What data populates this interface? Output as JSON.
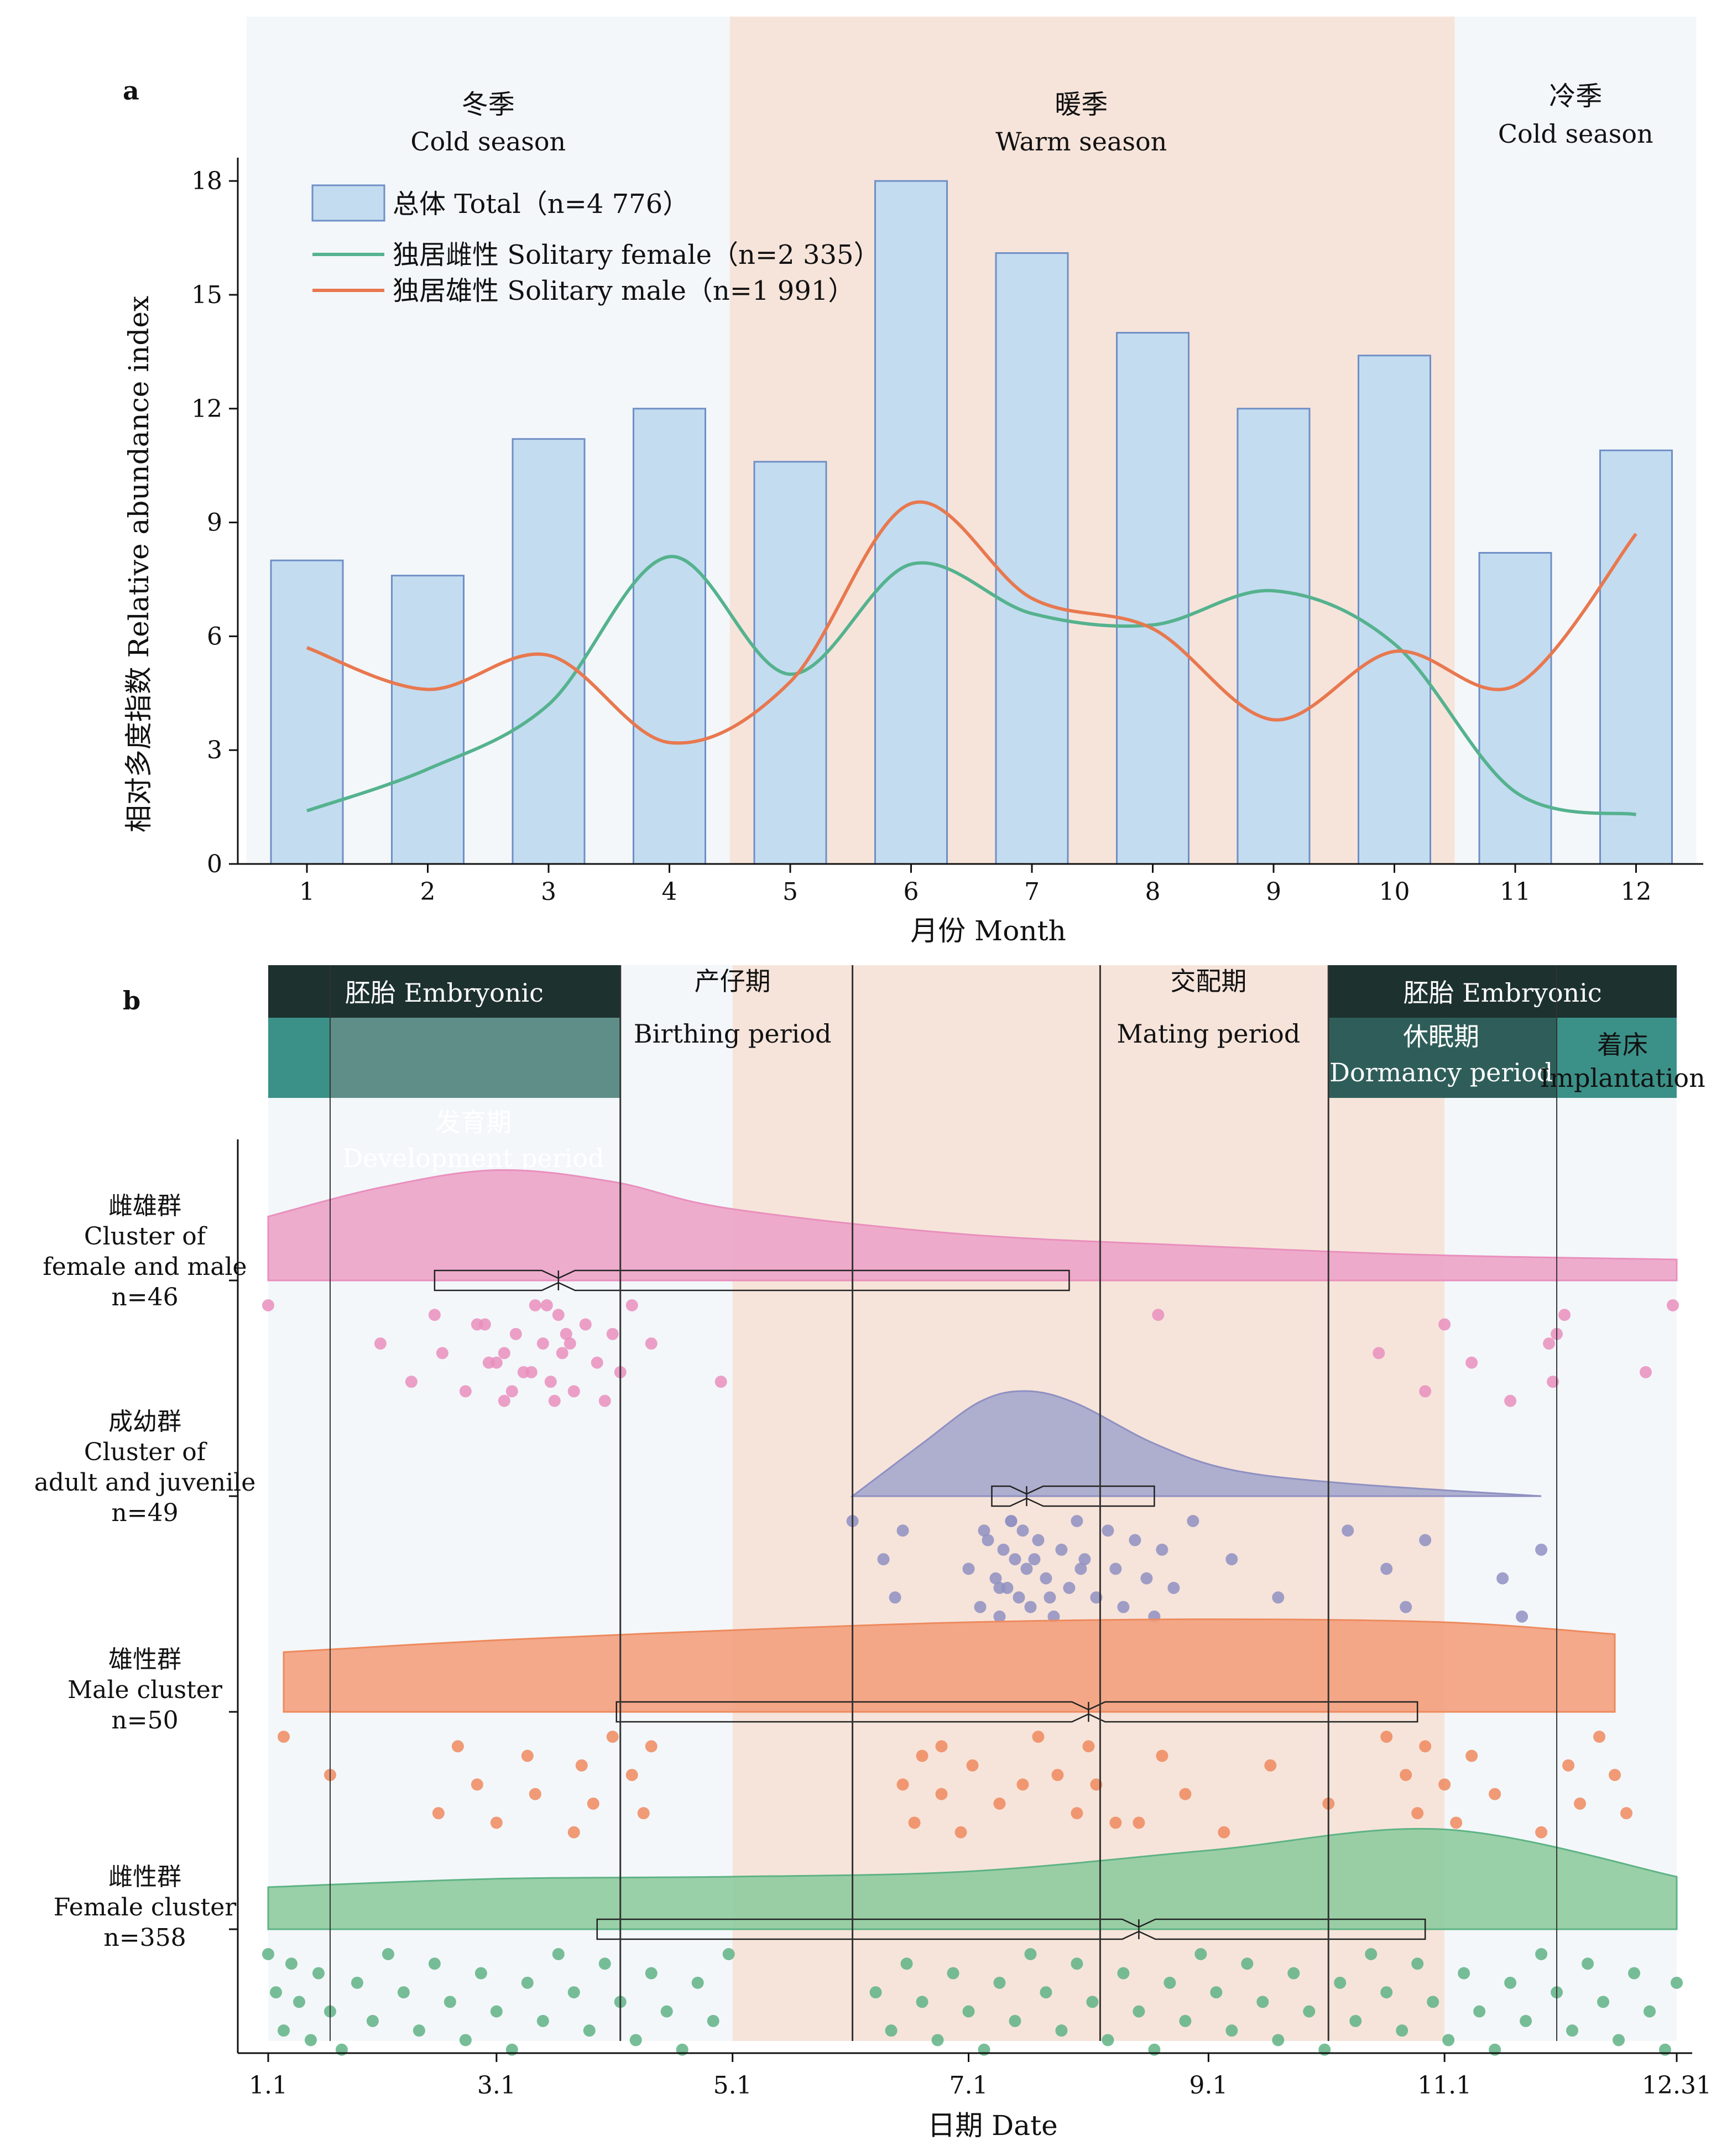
{
  "chart_data": [
    {
      "panel_label": "a",
      "type": "bar+line",
      "x": [
        1,
        2,
        3,
        4,
        5,
        6,
        7,
        8,
        9,
        10,
        11,
        12
      ],
      "xlabel": "月份 Month",
      "ylabel": "相对多度指数 Relative abundance index",
      "ylim": [
        0,
        18
      ],
      "yticks": [
        0,
        3,
        6,
        9,
        12,
        15,
        18
      ],
      "seasons": [
        {
          "cn": "冬季",
          "en": "Cold season",
          "from": 0.5,
          "to": 4.5,
          "color": "#f3f7fa"
        },
        {
          "cn": "暖季",
          "en": "Warm season",
          "from": 4.5,
          "to": 10.5,
          "color": "#f6e4da"
        },
        {
          "cn": "冷季",
          "en": "Cold season",
          "from": 10.5,
          "to": 12.5,
          "color": "#f3f7fa"
        }
      ],
      "series": [
        {
          "name": "总体 Total（n=4 776）",
          "kind": "bar",
          "color": "#c3dcf0",
          "stroke": "#6f8fc6",
          "values": [
            8.0,
            7.6,
            11.2,
            12.0,
            10.6,
            18.0,
            16.1,
            14.0,
            12.0,
            13.4,
            8.2,
            10.9
          ]
        },
        {
          "name": "独居雌性 Solitary female（n=2 335）",
          "kind": "line",
          "color": "#55b28e",
          "values": [
            1.4,
            2.5,
            4.2,
            8.1,
            5.0,
            7.9,
            6.6,
            6.3,
            7.2,
            5.8,
            1.9,
            1.3
          ]
        },
        {
          "name": "独居雄性 Solitary male（n=1 991）",
          "kind": "line",
          "color": "#e8784f",
          "values": [
            5.7,
            4.6,
            5.5,
            3.2,
            4.8,
            9.5,
            7.0,
            6.2,
            3.8,
            5.6,
            4.7,
            8.7
          ]
        }
      ],
      "legend": "top-left"
    },
    {
      "panel_label": "b",
      "type": "raincloud",
      "xlabel": "日期 Date",
      "xticks": [
        "1.1",
        "3.1",
        "5.1",
        "7.1",
        "9.1",
        "11.1",
        "12.31"
      ],
      "xtick_days": [
        1,
        60,
        121,
        182,
        244,
        305,
        365
      ],
      "xlim": [
        1,
        365
      ],
      "background": [
        {
          "from": 1,
          "to": 121,
          "color": "#f3f7fa"
        },
        {
          "from": 121,
          "to": 305,
          "color": "#f6e4da"
        },
        {
          "from": 305,
          "to": 365,
          "color": "#f3f7fa"
        }
      ],
      "vlines": [
        17,
        92,
        152,
        216,
        275,
        334
      ],
      "periods_dark": [
        {
          "label": "胚胎 Embryonic",
          "from": 1,
          "to": 92
        },
        {
          "label": "胚胎 Embryonic",
          "from": 275,
          "to": 365
        }
      ],
      "periods_teal": [
        {
          "from": 1,
          "to": 17,
          "color": "#3b9188"
        },
        {
          "from": 17,
          "to": 92,
          "color": "#5f8e88"
        },
        {
          "from": 275,
          "to": 334,
          "color": "#2f5e5a"
        },
        {
          "from": 334,
          "to": 365,
          "color": "#3b9188"
        }
      ],
      "labels": {
        "birthing_cn": "产仔期",
        "birthing_en": "Birthing period",
        "mating_cn": "交配期",
        "mating_en": "Mating period",
        "dormancy_cn": "休眠期",
        "dormancy_en": "Dormancy period",
        "implantation_cn": "着床",
        "implantation_en": "Implantation",
        "development_cn": "发育期",
        "development_en": "Development period"
      },
      "groups": [
        {
          "name_lines": [
            "雌雄群",
            "Cluster of",
            "female and male",
            "n=46"
          ],
          "color": "#e98fbd",
          "fill": "#eda3c8",
          "density_x": [
            1,
            30,
            60,
            90,
            120,
            180,
            240,
            300,
            365
          ],
          "density_y": [
            0.55,
            0.8,
            0.95,
            0.85,
            0.62,
            0.4,
            0.3,
            0.22,
            0.18
          ],
          "box": {
            "q1": 44,
            "median": 76,
            "q3": 208,
            "whisk_lo": 44,
            "whisk_hi": 208
          },
          "points": [
            1,
            30,
            38,
            44,
            46,
            52,
            57,
            60,
            62,
            65,
            67,
            70,
            72,
            74,
            76,
            77,
            80,
            83,
            86,
            88,
            90,
            92,
            95,
            100,
            118,
            231,
            288,
            300,
            305,
            312,
            322,
            334,
            357,
            364,
            332,
            333,
            336,
            62,
            64,
            55,
            58,
            75,
            78,
            69,
            73,
            79
          ]
        },
        {
          "name_lines": [
            "成幼群",
            "Cluster of",
            "adult and juvenile",
            "n=49"
          ],
          "color": "#8f90c2",
          "fill": "#a6a7cc",
          "density_x": [
            152,
            170,
            185,
            197,
            210,
            230,
            250,
            280,
            330
          ],
          "density_y": [
            0.0,
            0.5,
            0.9,
            1.0,
            0.88,
            0.5,
            0.25,
            0.12,
            0.0
          ],
          "box": {
            "q1": 188,
            "median": 197,
            "q3": 230,
            "whisk_lo": 188,
            "whisk_hi": 230
          },
          "points": [
            152,
            160,
            163,
            165,
            182,
            185,
            187,
            189,
            190,
            191,
            192,
            193,
            194,
            195,
            196,
            197,
            198,
            200,
            202,
            204,
            206,
            208,
            210,
            212,
            215,
            218,
            220,
            222,
            225,
            228,
            230,
            232,
            235,
            240,
            250,
            262,
            280,
            290,
            295,
            300,
            320,
            325,
            330,
            190,
            193,
            199,
            203,
            186,
            211
          ]
        },
        {
          "name_lines": [
            "雄性群",
            "Male cluster",
            "n=50"
          ],
          "color": "#ee8a5e",
          "fill": "#f3a07d",
          "density_x": [
            5,
            60,
            121,
            182,
            244,
            305,
            349
          ],
          "density_y": [
            0.6,
            0.72,
            0.82,
            0.9,
            0.93,
            0.9,
            0.78
          ],
          "box": {
            "q1": 91,
            "median": 213,
            "q3": 298,
            "whisk_lo": 91,
            "whisk_hi": 298
          },
          "points": [
            5,
            17,
            45,
            50,
            55,
            60,
            68,
            70,
            80,
            82,
            85,
            90,
            95,
            98,
            100,
            165,
            168,
            170,
            175,
            180,
            183,
            190,
            200,
            205,
            210,
            213,
            215,
            220,
            232,
            238,
            248,
            260,
            275,
            290,
            295,
            298,
            300,
            305,
            308,
            312,
            318,
            330,
            337,
            340,
            345,
            349,
            352,
            175,
            196,
            226
          ]
        },
        {
          "name_lines": [
            "雌性群",
            "Female cluster",
            "n=358"
          ],
          "color": "#5fb385",
          "fill": "#8fcb9f",
          "density_x": [
            1,
            60,
            121,
            182,
            244,
            305,
            365
          ],
          "density_y": [
            0.4,
            0.48,
            0.5,
            0.55,
            0.75,
            0.95,
            0.5
          ],
          "box": {
            "q1": 86,
            "median": 226,
            "q3": 300,
            "whisk_lo": 1,
            "whisk_hi": 365
          },
          "points": [
            1,
            3,
            5,
            7,
            9,
            12,
            14,
            17,
            20,
            24,
            28,
            32,
            36,
            40,
            44,
            48,
            52,
            56,
            60,
            64,
            68,
            72,
            76,
            80,
            84,
            88,
            92,
            96,
            100,
            104,
            108,
            112,
            116,
            120,
            158,
            162,
            166,
            170,
            174,
            178,
            182,
            186,
            190,
            194,
            198,
            202,
            206,
            210,
            214,
            218,
            222,
            226,
            230,
            234,
            238,
            242,
            246,
            250,
            254,
            258,
            262,
            266,
            270,
            274,
            278,
            282,
            286,
            290,
            294,
            298,
            302,
            306,
            310,
            314,
            318,
            322,
            326,
            330,
            334,
            338,
            342,
            346,
            350,
            354,
            358,
            362,
            365
          ]
        }
      ]
    }
  ]
}
